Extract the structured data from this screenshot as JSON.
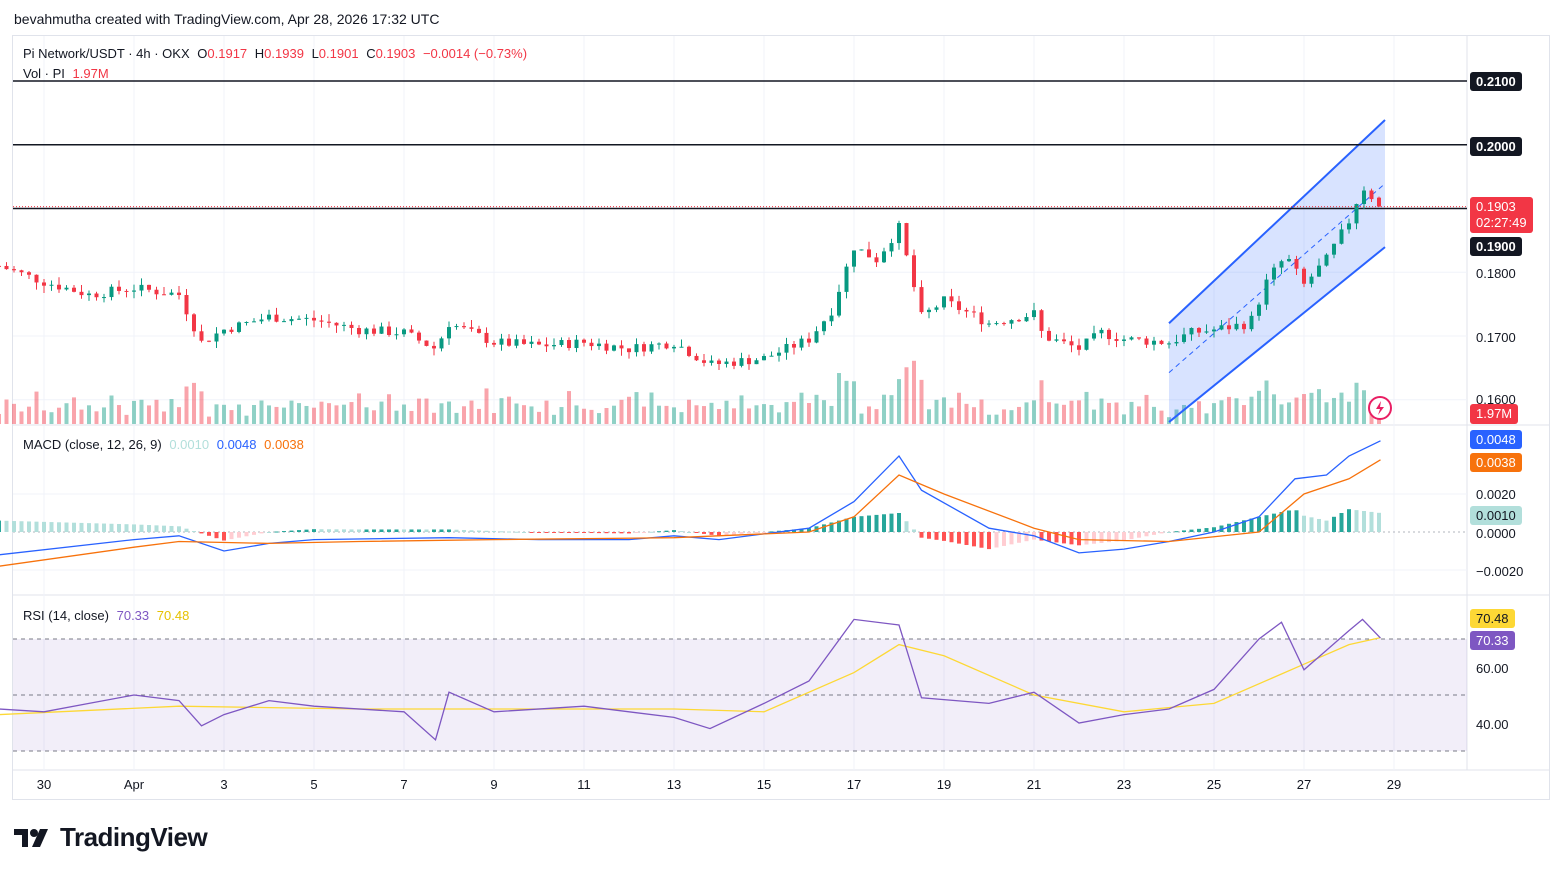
{
  "header": {
    "byline": "bevahmutha created with TradingView.com, Apr 28, 2026 17:32 UTC"
  },
  "symbol": {
    "title": "Pi Network/USDT · 4h · OKX",
    "o_label": "O",
    "o_value": "0.1917",
    "h_label": "H",
    "h_value": "0.1939",
    "l_label": "L",
    "l_value": "0.1901",
    "c_label": "C",
    "c_value": "0.1903",
    "change": "−0.0014 (−0.73%)",
    "vol_label": "Vol · PI",
    "vol_value": "1.97M"
  },
  "price_scale": {
    "levels": [
      "0.2100",
      "0.2000",
      "0.1900",
      "0.1800",
      "0.1700",
      "0.1600"
    ],
    "last_price": "0.1903",
    "countdown": "02:27:49",
    "volume_tag": "1.97M"
  },
  "macd": {
    "title": "MACD (close, 12, 26, 9)",
    "hist": "0.0010",
    "macd": "0.0048",
    "signal": "0.0038",
    "levels": [
      "0.0020",
      "0.0000",
      "−0.0020"
    ]
  },
  "rsi": {
    "title": "RSI (14, close)",
    "rsi": "70.33",
    "ma": "70.48",
    "levels": [
      "60.00",
      "40.00"
    ]
  },
  "x_axis": {
    "ticks": [
      "30",
      "Apr",
      "3",
      "5",
      "7",
      "9",
      "11",
      "13",
      "15",
      "17",
      "19",
      "21",
      "23",
      "25",
      "27",
      "29"
    ]
  },
  "colors": {
    "up": "#089981",
    "down": "#f23645",
    "macd": "#2962ff",
    "signal": "#f7720c",
    "rsi": "#7e57c2",
    "rsi_ma": "#fdd835",
    "channel": "#2962ff"
  },
  "chart_data": [
    {
      "type": "candlestick",
      "title": "Pi Network/USDT · 4h · OKX",
      "interval": "4h",
      "y_range": [
        0.157,
        0.213
      ],
      "x_range": [
        "Mar 29",
        "Apr 30"
      ],
      "horizontal_levels": [
        0.21,
        0.2,
        0.19
      ],
      "rising_channel": {
        "start": "Apr 24",
        "end": "Apr 28",
        "lower": [
          0.1565,
          0.1852
        ],
        "upper": [
          0.172,
          0.202
        ]
      },
      "ohlc_last": {
        "open": 0.1917,
        "high": 0.1939,
        "low": 0.1901,
        "close": 0.1903
      },
      "close_path": [
        {
          "x": "Mar 29",
          "y": 0.181
        },
        {
          "x": "Mar 30",
          "y": 0.1785
        },
        {
          "x": "Mar 31",
          "y": 0.1765
        },
        {
          "x": "Apr 1",
          "y": 0.1775
        },
        {
          "x": "Apr 2",
          "y": 0.1765
        },
        {
          "x": "Apr 2.5",
          "y": 0.169
        },
        {
          "x": "Apr 3",
          "y": 0.171
        },
        {
          "x": "Apr 4",
          "y": 0.173
        },
        {
          "x": "Apr 5",
          "y": 0.1725
        },
        {
          "x": "Apr 6",
          "y": 0.171
        },
        {
          "x": "Apr 7",
          "y": 0.1705
        },
        {
          "x": "Apr 7.7",
          "y": 0.168
        },
        {
          "x": "Apr 8",
          "y": 0.172
        },
        {
          "x": "Apr 9",
          "y": 0.169
        },
        {
          "x": "Apr 10",
          "y": 0.1685
        },
        {
          "x": "Apr 11",
          "y": 0.169
        },
        {
          "x": "Apr 12",
          "y": 0.168
        },
        {
          "x": "Apr 13",
          "y": 0.169
        },
        {
          "x": "Apr 13.8",
          "y": 0.1655
        },
        {
          "x": "Apr 15",
          "y": 0.1665
        },
        {
          "x": "Apr 16",
          "y": 0.1695
        },
        {
          "x": "Apr 16.5",
          "y": 0.174
        },
        {
          "x": "Apr 17",
          "y": 0.184
        },
        {
          "x": "Apr 17.5",
          "y": 0.182
        },
        {
          "x": "Apr 18",
          "y": 0.187
        },
        {
          "x": "Apr 18.5",
          "y": 0.173
        },
        {
          "x": "Apr 19",
          "y": 0.1755
        },
        {
          "x": "Apr 20",
          "y": 0.172
        },
        {
          "x": "Apr 21",
          "y": 0.1735
        },
        {
          "x": "Apr 21.2",
          "y": 0.17
        },
        {
          "x": "Apr 22",
          "y": 0.168
        },
        {
          "x": "Apr 22.5",
          "y": 0.1705
        },
        {
          "x": "Apr 23",
          "y": 0.1695
        },
        {
          "x": "Apr 24",
          "y": 0.169
        },
        {
          "x": "Apr 24.5",
          "y": 0.1705
        },
        {
          "x": "Apr 25",
          "y": 0.171
        },
        {
          "x": "Apr 25.8",
          "y": 0.172
        },
        {
          "x": "Apr 26.2",
          "y": 0.179
        },
        {
          "x": "Apr 26.6",
          "y": 0.1825
        },
        {
          "x": "Apr 27",
          "y": 0.178
        },
        {
          "x": "Apr 27.5",
          "y": 0.182
        },
        {
          "x": "Apr 28",
          "y": 0.188
        },
        {
          "x": "Apr 28.3",
          "y": 0.1935
        },
        {
          "x": "Apr 28.7",
          "y": 0.1903
        }
      ]
    },
    {
      "type": "bar",
      "title": "Vol · PI",
      "last_value": "1.97M"
    },
    {
      "type": "line",
      "title": "MACD (close, 12, 26, 9)",
      "y_range": [
        -0.0028,
        0.0052
      ],
      "series": [
        {
          "name": "MACD",
          "points": [
            {
              "x": "Mar 29",
              "y": -0.0012
            },
            {
              "x": "Apr 1",
              "y": -0.0004
            },
            {
              "x": "Apr 2",
              "y": -0.0002
            },
            {
              "x": "Apr 3",
              "y": -0.001
            },
            {
              "x": "Apr 4",
              "y": -0.0006
            },
            {
              "x": "Apr 5",
              "y": -0.0004
            },
            {
              "x": "Apr 8",
              "y": -0.0003
            },
            {
              "x": "Apr 10",
              "y": -0.0004
            },
            {
              "x": "Apr 12",
              "y": -0.0004
            },
            {
              "x": "Apr 13",
              "y": -0.0002
            },
            {
              "x": "Apr 14",
              "y": -0.0004
            },
            {
              "x": "Apr 16",
              "y": 0.0002
            },
            {
              "x": "Apr 17",
              "y": 0.0016
            },
            {
              "x": "Apr 18",
              "y": 0.004
            },
            {
              "x": "Apr 18.5",
              "y": 0.0022
            },
            {
              "x": "Apr 20",
              "y": 0.0002
            },
            {
              "x": "Apr 21",
              "y": -0.0002
            },
            {
              "x": "Apr 22",
              "y": -0.0011
            },
            {
              "x": "Apr 23",
              "y": -0.0009
            },
            {
              "x": "Apr 24",
              "y": -0.0005
            },
            {
              "x": "Apr 25",
              "y": 0.0
            },
            {
              "x": "Apr 26",
              "y": 0.0008
            },
            {
              "x": "Apr 26.8",
              "y": 0.0028
            },
            {
              "x": "Apr 27.5",
              "y": 0.003
            },
            {
              "x": "Apr 28",
              "y": 0.004
            },
            {
              "x": "Apr 28.7",
              "y": 0.0048
            }
          ]
        },
        {
          "name": "Signal",
          "points": [
            {
              "x": "Mar 29",
              "y": -0.0018
            },
            {
              "x": "Apr 1",
              "y": -0.0008
            },
            {
              "x": "Apr 2",
              "y": -0.0005
            },
            {
              "x": "Apr 4",
              "y": -0.0006
            },
            {
              "x": "Apr 6",
              "y": -0.0005
            },
            {
              "x": "Apr 9",
              "y": -0.0004
            },
            {
              "x": "Apr 13",
              "y": -0.0003
            },
            {
              "x": "Apr 16",
              "y": 0.0
            },
            {
              "x": "Apr 17",
              "y": 0.0008
            },
            {
              "x": "Apr 18",
              "y": 0.003
            },
            {
              "x": "Apr 19",
              "y": 0.002
            },
            {
              "x": "Apr 21",
              "y": 0.0002
            },
            {
              "x": "Apr 22",
              "y": -0.0004
            },
            {
              "x": "Apr 24",
              "y": -0.0005
            },
            {
              "x": "Apr 26",
              "y": 0.0
            },
            {
              "x": "Apr 27",
              "y": 0.002
            },
            {
              "x": "Apr 28",
              "y": 0.0028
            },
            {
              "x": "Apr 28.7",
              "y": 0.0038
            }
          ]
        }
      ],
      "histogram_last": 0.001
    },
    {
      "type": "line",
      "title": "RSI (14, close)",
      "y_range": [
        30,
        80
      ],
      "band": [
        30,
        70
      ],
      "series": [
        {
          "name": "RSI",
          "points": [
            {
              "x": "Mar 29",
              "y": 45
            },
            {
              "x": "Mar 30",
              "y": 44
            },
            {
              "x": "Mar 31",
              "y": 47
            },
            {
              "x": "Apr 1",
              "y": 50
            },
            {
              "x": "Apr 2",
              "y": 48
            },
            {
              "x": "Apr 2.5",
              "y": 39
            },
            {
              "x": "Apr 3",
              "y": 43
            },
            {
              "x": "Apr 4",
              "y": 48
            },
            {
              "x": "Apr 5",
              "y": 46
            },
            {
              "x": "Apr 7",
              "y": 44
            },
            {
              "x": "Apr 7.7",
              "y": 34
            },
            {
              "x": "Apr 8",
              "y": 51
            },
            {
              "x": "Apr 9",
              "y": 44
            },
            {
              "x": "Apr 11",
              "y": 46
            },
            {
              "x": "Apr 13",
              "y": 42
            },
            {
              "x": "Apr 13.8",
              "y": 38
            },
            {
              "x": "Apr 15",
              "y": 47
            },
            {
              "x": "Apr 16",
              "y": 55
            },
            {
              "x": "Apr 17",
              "y": 77
            },
            {
              "x": "Apr 18",
              "y": 75
            },
            {
              "x": "Apr 18.5",
              "y": 49
            },
            {
              "x": "Apr 20",
              "y": 47
            },
            {
              "x": "Apr 21",
              "y": 51
            },
            {
              "x": "Apr 22",
              "y": 40
            },
            {
              "x": "Apr 23",
              "y": 43
            },
            {
              "x": "Apr 24",
              "y": 45
            },
            {
              "x": "Apr 25",
              "y": 52
            },
            {
              "x": "Apr 26",
              "y": 70
            },
            {
              "x": "Apr 26.5",
              "y": 76
            },
            {
              "x": "Apr 27",
              "y": 59
            },
            {
              "x": "Apr 27.5",
              "y": 66
            },
            {
              "x": "Apr 28",
              "y": 73
            },
            {
              "x": "Apr 28.3",
              "y": 77
            },
            {
              "x": "Apr 28.7",
              "y": 70.33
            }
          ]
        },
        {
          "name": "RSI-based MA",
          "points": [
            {
              "x": "Mar 29",
              "y": 43
            },
            {
              "x": "Apr 2",
              "y": 46
            },
            {
              "x": "Apr 6",
              "y": 45
            },
            {
              "x": "Apr 9",
              "y": 45
            },
            {
              "x": "Apr 13",
              "y": 45
            },
            {
              "x": "Apr 15",
              "y": 44
            },
            {
              "x": "Apr 17",
              "y": 58
            },
            {
              "x": "Apr 18",
              "y": 68
            },
            {
              "x": "Apr 19",
              "y": 64
            },
            {
              "x": "Apr 21",
              "y": 50
            },
            {
              "x": "Apr 23",
              "y": 44
            },
            {
              "x": "Apr 25",
              "y": 47
            },
            {
              "x": "Apr 27",
              "y": 61
            },
            {
              "x": "Apr 28",
              "y": 68
            },
            {
              "x": "Apr 28.7",
              "y": 70.48
            }
          ]
        }
      ]
    }
  ]
}
